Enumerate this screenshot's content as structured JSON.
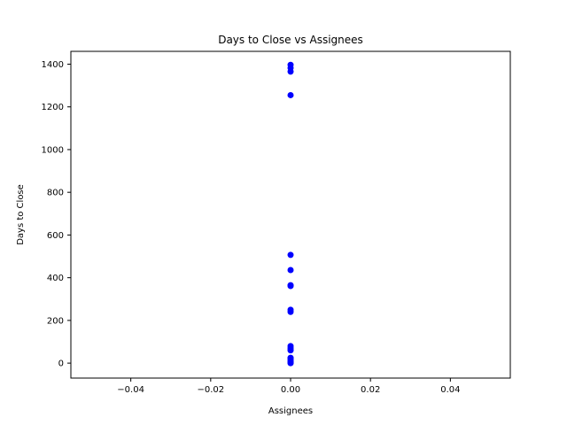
{
  "chart_data": {
    "type": "scatter",
    "title": "Days to Close vs Assignees",
    "xlabel": "Assignees",
    "ylabel": "Days to Close",
    "xlim": [
      -0.055,
      0.055
    ],
    "ylim": [
      -70,
      1460
    ],
    "grid": false,
    "marker_color": "#0000ff",
    "x_ticks": [
      -0.04,
      -0.02,
      0.0,
      0.02,
      0.04
    ],
    "x_tick_labels": [
      "−0.04",
      "−0.02",
      "0.00",
      "0.02",
      "0.04"
    ],
    "y_ticks": [
      0,
      200,
      400,
      600,
      800,
      1000,
      1200,
      1400
    ],
    "y_tick_labels": [
      "0",
      "200",
      "400",
      "600",
      "800",
      "1000",
      "1200",
      "1400"
    ],
    "series": [
      {
        "points": [
          {
            "x": 0,
            "y": 1397
          },
          {
            "x": 0,
            "y": 1382
          },
          {
            "x": 0,
            "y": 1365
          },
          {
            "x": 0,
            "y": 1255
          },
          {
            "x": 0,
            "y": 507
          },
          {
            "x": 0,
            "y": 436
          },
          {
            "x": 0,
            "y": 365
          },
          {
            "x": 0,
            "y": 361
          },
          {
            "x": 0,
            "y": 250
          },
          {
            "x": 0,
            "y": 240
          },
          {
            "x": 0,
            "y": 80
          },
          {
            "x": 0,
            "y": 70
          },
          {
            "x": 0,
            "y": 60
          },
          {
            "x": 0,
            "y": 25
          },
          {
            "x": 0,
            "y": 18
          },
          {
            "x": 0,
            "y": 10
          },
          {
            "x": 0,
            "y": 5
          },
          {
            "x": 0,
            "y": 2
          },
          {
            "x": 0,
            "y": 0
          }
        ]
      }
    ]
  }
}
